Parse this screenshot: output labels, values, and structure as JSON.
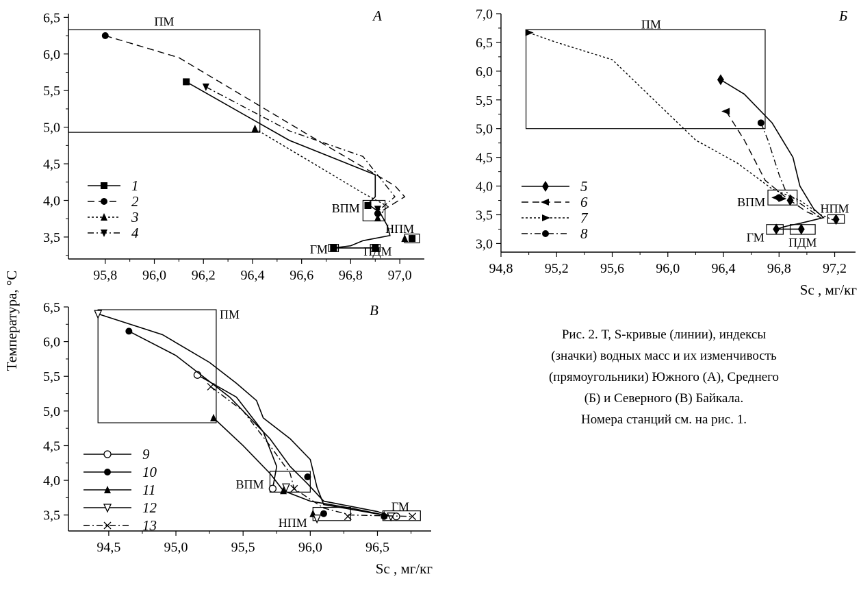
{
  "figure": {
    "y_axis_label": "Температура,  °С",
    "caption_lines": [
      "Рис. 2. Т, S-кривые (линии), индексы",
      "(значки) водных масс и их изменчивость",
      "(прямоугольники) Южного (А), Среднего",
      "(Б) и Северного (В) Байкала.",
      "Номера станций см. на рис. 1."
    ]
  },
  "chart_data": [
    {
      "panel": "A",
      "type": "line",
      "panel_label": "А",
      "xlabel": "",
      "ylabel": "Температура,  °С",
      "xlim": [
        95.65,
        97.1
      ],
      "ylim": [
        3.2,
        6.55
      ],
      "xticks": [
        "95,8",
        "96,0",
        "96,2",
        "96,4",
        "96,6",
        "96,8",
        "97,0"
      ],
      "yticks": [
        "3,5",
        "4,0",
        "4,5",
        "5,0",
        "5,5",
        "6,0",
        "6,5"
      ],
      "series": [
        {
          "name": "1",
          "style": "solid",
          "marker": "square",
          "points": [
            [
              96.13,
              5.62
            ],
            [
              96.55,
              4.82
            ],
            [
              96.9,
              4.35
            ],
            [
              96.9,
              4.05
            ],
            [
              96.87,
              3.95
            ],
            [
              96.92,
              3.83
            ],
            [
              96.95,
              3.65
            ],
            [
              96.96,
              3.52
            ],
            [
              96.85,
              3.45
            ],
            [
              96.8,
              3.38
            ],
            [
              96.73,
              3.35
            ],
            [
              96.9,
              3.35
            ]
          ],
          "markers": [
            [
              96.13,
              5.62
            ],
            [
              96.87,
              3.93
            ],
            [
              96.73,
              3.35
            ],
            [
              96.9,
              3.35
            ],
            [
              97.05,
              3.48
            ]
          ]
        },
        {
          "name": "2",
          "style": "dashed",
          "marker": "circle",
          "points": [
            [
              95.8,
              6.25
            ],
            [
              96.1,
              5.95
            ],
            [
              96.35,
              5.45
            ],
            [
              96.7,
              4.75
            ],
            [
              96.98,
              4.2
            ],
            [
              97.02,
              4.05
            ],
            [
              96.91,
              3.82
            ]
          ],
          "markers": [
            [
              95.8,
              6.25
            ],
            [
              96.91,
              3.82
            ],
            [
              97.05,
              3.48
            ]
          ]
        },
        {
          "name": "3",
          "style": "dotted",
          "marker": "triangle-up",
          "points": [
            [
              96.41,
              4.98
            ],
            [
              96.65,
              4.5
            ],
            [
              96.85,
              4.1
            ],
            [
              96.95,
              3.92
            ],
            [
              96.91,
              3.76
            ]
          ],
          "markers": [
            [
              96.41,
              4.98
            ],
            [
              96.91,
              3.76
            ],
            [
              97.02,
              3.48
            ]
          ]
        },
        {
          "name": "4",
          "style": "dashdot",
          "marker": "triangle-down",
          "points": [
            [
              96.21,
              5.55
            ],
            [
              96.55,
              4.95
            ],
            [
              96.85,
              4.6
            ],
            [
              96.98,
              4.05
            ],
            [
              96.91,
              3.85
            ]
          ],
          "markers": [
            [
              96.21,
              5.55
            ],
            [
              96.91,
              3.88
            ]
          ]
        }
      ],
      "boxes": [
        {
          "label": "ПМ",
          "x": [
            95.65,
            96.43
          ],
          "y": [
            4.93,
            6.33
          ]
        },
        {
          "label": "ВПМ",
          "x": [
            96.85,
            96.94
          ],
          "y": [
            3.72,
            4.0
          ]
        },
        {
          "label": "НПМ",
          "x": [
            97.02,
            97.08
          ],
          "y": [
            3.42,
            3.54
          ]
        },
        {
          "label": "ГМ",
          "x": [
            96.71,
            96.75
          ],
          "y": [
            3.3,
            3.4
          ]
        },
        {
          "label": "ПДМ",
          "x": [
            96.88,
            96.92
          ],
          "y": [
            3.3,
            3.4
          ]
        }
      ],
      "box_labels": [
        {
          "text": "ПМ",
          "x": 96.04,
          "y": 6.45
        },
        {
          "text": "ВПМ",
          "x": 96.78,
          "y": 3.9
        },
        {
          "text": "НПМ",
          "x": 97.0,
          "y": 3.62
        },
        {
          "text": "ГМ",
          "x": 96.67,
          "y": 3.34
        },
        {
          "text": "ПДМ",
          "x": 96.91,
          "y": 3.31
        }
      ],
      "legend": {
        "position": "left",
        "entries": [
          "1",
          "2",
          "3",
          "4"
        ]
      }
    },
    {
      "panel": "B",
      "type": "line",
      "panel_label": "Б",
      "xlabel": "Sс , мг/кг",
      "ylabel": "",
      "xlim": [
        94.8,
        97.35
      ],
      "ylim": [
        2.85,
        7.0
      ],
      "xticks": [
        "94,8",
        "95,2",
        "95,6",
        "96,0",
        "96,4",
        "96,8",
        "97,2"
      ],
      "yticks": [
        "3,0",
        "3,5",
        "4,0",
        "4,5",
        "5,0",
        "5,5",
        "6,0",
        "6,5",
        "7,0"
      ],
      "series": [
        {
          "name": "5",
          "style": "solid",
          "marker": "diamond",
          "points": [
            [
              96.38,
              5.85
            ],
            [
              96.55,
              5.6
            ],
            [
              96.75,
              5.1
            ],
            [
              96.9,
              4.5
            ],
            [
              96.95,
              4.0
            ],
            [
              97.05,
              3.6
            ],
            [
              97.12,
              3.45
            ],
            [
              96.95,
              3.35
            ],
            [
              96.85,
              3.3
            ],
            [
              96.78,
              3.25
            ],
            [
              96.95,
              3.25
            ]
          ],
          "markers": [
            [
              96.38,
              5.85
            ],
            [
              96.88,
              3.75
            ],
            [
              96.78,
              3.25
            ],
            [
              96.96,
              3.25
            ],
            [
              97.21,
              3.42
            ]
          ]
        },
        {
          "name": "6",
          "style": "dashed",
          "marker": "arrow-left",
          "points": [
            [
              96.42,
              5.3
            ],
            [
              96.55,
              4.8
            ],
            [
              96.7,
              4.1
            ],
            [
              96.85,
              3.8
            ],
            [
              97.0,
              3.55
            ],
            [
              97.1,
              3.45
            ]
          ],
          "markers": [
            [
              96.42,
              5.3
            ],
            [
              96.78,
              3.8
            ]
          ]
        },
        {
          "name": "7",
          "style": "dotted",
          "marker": "arrow-right",
          "points": [
            [
              95.0,
              6.67
            ],
            [
              95.2,
              6.5
            ],
            [
              95.6,
              6.2
            ],
            [
              95.9,
              5.5
            ],
            [
              96.2,
              4.8
            ],
            [
              96.5,
              4.4
            ],
            [
              96.75,
              3.95
            ],
            [
              96.95,
              3.75
            ],
            [
              97.1,
              3.5
            ],
            [
              97.2,
              3.4
            ]
          ],
          "markers": [
            [
              95.0,
              6.67
            ],
            [
              96.82,
              3.78
            ]
          ]
        },
        {
          "name": "8",
          "style": "dashdot",
          "marker": "circle",
          "points": [
            [
              96.67,
              5.1
            ],
            [
              96.72,
              4.8
            ],
            [
              96.8,
              4.2
            ],
            [
              96.85,
              3.9
            ],
            [
              96.95,
              3.7
            ],
            [
              97.1,
              3.45
            ]
          ],
          "markers": [
            [
              96.67,
              5.1
            ],
            [
              96.8,
              3.8
            ]
          ]
        }
      ],
      "boxes": [
        {
          "label": "ПМ",
          "x": [
            94.98,
            96.7
          ],
          "y": [
            5.0,
            6.72
          ]
        },
        {
          "label": "ВПМ",
          "x": [
            96.72,
            96.93
          ],
          "y": [
            3.67,
            3.93
          ]
        },
        {
          "label": "НПМ",
          "x": [
            97.15,
            97.27
          ],
          "y": [
            3.35,
            3.5
          ]
        },
        {
          "label": "ГМ",
          "x": [
            96.71,
            96.83
          ],
          "y": [
            3.16,
            3.33
          ]
        },
        {
          "label": "ПДМ",
          "x": [
            96.88,
            97.06
          ],
          "y": [
            3.16,
            3.33
          ]
        }
      ],
      "box_labels": [
        {
          "text": "ПМ",
          "x": 95.88,
          "y": 6.83
        },
        {
          "text": "ВПМ",
          "x": 96.6,
          "y": 3.73
        },
        {
          "text": "НПМ",
          "x": 97.2,
          "y": 3.62
        },
        {
          "text": "ГМ",
          "x": 96.63,
          "y": 3.12
        },
        {
          "text": "ПДМ",
          "x": 96.97,
          "y": 3.03
        }
      ],
      "legend": {
        "position": "left",
        "entries": [
          "5",
          "6",
          "7",
          "8"
        ]
      }
    },
    {
      "panel": "C",
      "type": "line",
      "panel_label": "В",
      "xlabel": "Sс , мг/кг",
      "ylabel": "",
      "xlim": [
        94.2,
        96.9
      ],
      "ylim": [
        3.27,
        6.5
      ],
      "xticks": [
        "94,5",
        "95,0",
        "95,5",
        "96,0",
        "96,5"
      ],
      "yticks": [
        "3,5",
        "4,0",
        "4,5",
        "5,0",
        "5,5",
        "6,0",
        "6,5"
      ],
      "series": [
        {
          "name": "9",
          "style": "solid",
          "marker": "circle-open",
          "points": [
            [
              95.16,
              5.52
            ],
            [
              95.45,
              5.2
            ],
            [
              95.65,
              4.7
            ],
            [
              95.75,
              4.2
            ],
            [
              95.72,
              3.88
            ]
          ],
          "markers": [
            [
              95.16,
              5.52
            ],
            [
              95.72,
              3.88
            ],
            [
              96.64,
              3.48
            ]
          ]
        },
        {
          "name": "10",
          "style": "solid",
          "marker": "circle",
          "points": [
            [
              94.65,
              6.15
            ],
            [
              95.0,
              5.8
            ],
            [
              95.4,
              5.2
            ],
            [
              95.7,
              4.6
            ],
            [
              95.85,
              4.2
            ],
            [
              95.98,
              3.95
            ],
            [
              96.1,
              3.7
            ],
            [
              96.5,
              3.55
            ],
            [
              96.6,
              3.48
            ]
          ],
          "markers": [
            [
              94.65,
              6.15
            ],
            [
              95.98,
              4.05
            ],
            [
              96.1,
              3.52
            ],
            [
              96.55,
              3.48
            ]
          ]
        },
        {
          "name": "11",
          "style": "solid",
          "marker": "triangle-up",
          "points": [
            [
              95.28,
              4.9
            ],
            [
              95.5,
              4.5
            ],
            [
              95.7,
              4.1
            ],
            [
              95.8,
              3.85
            ],
            [
              96.0,
              3.7
            ],
            [
              96.3,
              3.6
            ],
            [
              96.55,
              3.5
            ]
          ],
          "markers": [
            [
              95.28,
              4.9
            ],
            [
              95.8,
              3.85
            ],
            [
              96.02,
              3.52
            ],
            [
              96.55,
              3.5
            ]
          ]
        },
        {
          "name": "12",
          "style": "solid",
          "marker": "triangle-down-open",
          "points": [
            [
              94.42,
              6.4
            ],
            [
              94.9,
              6.1
            ],
            [
              95.25,
              5.7
            ],
            [
              95.45,
              5.4
            ],
            [
              95.6,
              5.15
            ],
            [
              95.65,
              4.9
            ],
            [
              95.85,
              4.6
            ],
            [
              96.0,
              4.3
            ],
            [
              96.05,
              3.9
            ],
            [
              96.1,
              3.65
            ],
            [
              96.4,
              3.55
            ],
            [
              96.6,
              3.48
            ]
          ],
          "markers": [
            [
              94.42,
              6.4
            ],
            [
              95.82,
              3.9
            ],
            [
              96.05,
              3.45
            ],
            [
              96.6,
              3.48
            ]
          ]
        },
        {
          "name": "13",
          "style": "dashdot",
          "marker": "x",
          "points": [
            [
              95.26,
              5.35
            ],
            [
              95.5,
              5.0
            ],
            [
              95.7,
              4.5
            ],
            [
              95.85,
              4.1
            ],
            [
              95.88,
              3.88
            ],
            [
              96.1,
              3.6
            ],
            [
              96.3,
              3.5
            ],
            [
              96.76,
              3.48
            ]
          ],
          "markers": [
            [
              95.26,
              5.35
            ],
            [
              95.88,
              3.88
            ],
            [
              96.28,
              3.48
            ],
            [
              96.76,
              3.48
            ]
          ]
        }
      ],
      "boxes": [
        {
          "label": "ПМ",
          "x": [
            94.42,
            95.3
          ],
          "y": [
            4.83,
            6.46
          ]
        },
        {
          "label": "ВПМ",
          "x": [
            95.7,
            96.0
          ],
          "y": [
            3.83,
            4.13
          ]
        },
        {
          "label": "НПМ",
          "x": [
            96.02,
            96.3
          ],
          "y": [
            3.42,
            3.61
          ]
        },
        {
          "label": "ГМ",
          "x": [
            96.54,
            96.82
          ],
          "y": [
            3.42,
            3.56
          ]
        }
      ],
      "box_labels": [
        {
          "text": "ПМ",
          "x": 95.4,
          "y": 6.4
        },
        {
          "text": "ВПМ",
          "x": 95.55,
          "y": 3.95
        },
        {
          "text": "НПМ",
          "x": 95.87,
          "y": 3.4
        },
        {
          "text": "ГМ",
          "x": 96.67,
          "y": 3.63
        }
      ],
      "legend": {
        "position": "left",
        "entries": [
          "9",
          "10",
          "11",
          "12",
          "13"
        ]
      }
    }
  ]
}
